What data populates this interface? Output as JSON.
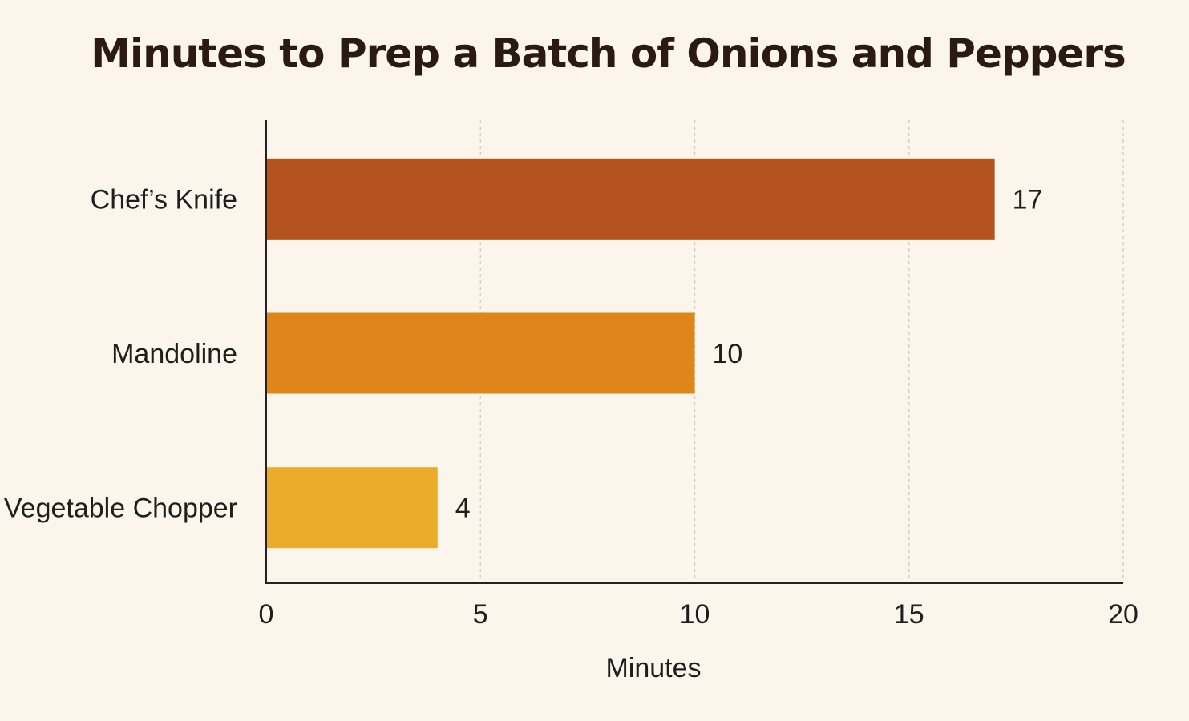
{
  "chart_data": {
    "type": "bar",
    "orientation": "horizontal",
    "title": "Minutes to Prep a Batch of Onions and Peppers",
    "xlabel": "Minutes",
    "ylabel": "",
    "categories": [
      "Chef’s Knife",
      "Mandoline",
      "Vegetable Chopper"
    ],
    "values": [
      17,
      10,
      4
    ],
    "data_labels": [
      "17",
      "10",
      "4"
    ],
    "xlim": [
      0,
      20
    ],
    "xticks": [
      0,
      5,
      10,
      15,
      20
    ],
    "grid": "vertical dashed",
    "legend": "none",
    "colors": [
      "#b5531e",
      "#de8619",
      "#ebab2b"
    ]
  }
}
